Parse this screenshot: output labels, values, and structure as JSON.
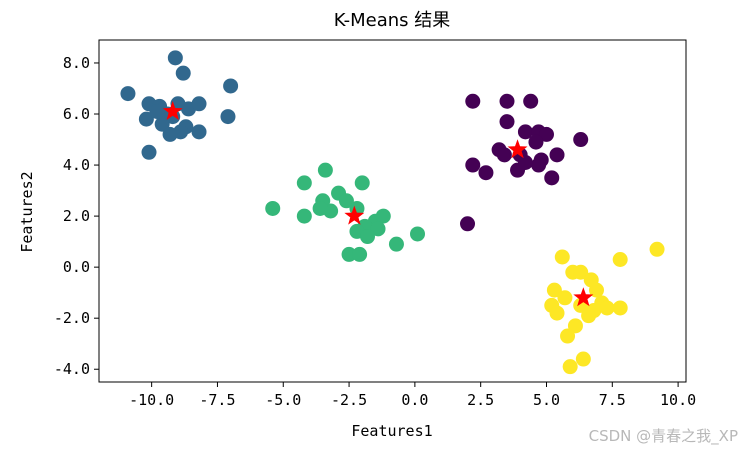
{
  "chart_data": {
    "type": "scatter",
    "title": "K-Means 结果",
    "xlabel": "Features1",
    "ylabel": "Features2",
    "xlim": [
      -12.0,
      10.3
    ],
    "ylim": [
      -4.5,
      8.9
    ],
    "xticks": [
      -10.0,
      -7.5,
      -5.0,
      -2.5,
      0.0,
      2.5,
      5.0,
      7.5,
      10.0
    ],
    "yticks": [
      -4.0,
      -2.0,
      0.0,
      2.0,
      4.0,
      6.0,
      8.0
    ],
    "grid": false,
    "point_radius_note": "filled circles",
    "series": [
      {
        "cluster": 0,
        "color": "#440154",
        "points": [
          [
            2.2,
            6.5
          ],
          [
            3.5,
            6.5
          ],
          [
            4.4,
            6.5
          ],
          [
            3.5,
            5.7
          ],
          [
            4.2,
            5.3
          ],
          [
            4.7,
            5.3
          ],
          [
            5.0,
            5.2
          ],
          [
            6.3,
            5.0
          ],
          [
            4.6,
            4.9
          ],
          [
            3.2,
            4.6
          ],
          [
            3.4,
            4.4
          ],
          [
            4.0,
            4.4
          ],
          [
            4.8,
            4.2
          ],
          [
            5.4,
            4.4
          ],
          [
            4.7,
            4.0
          ],
          [
            2.2,
            4.0
          ],
          [
            2.7,
            3.7
          ],
          [
            3.9,
            3.8
          ],
          [
            4.2,
            4.1
          ],
          [
            5.2,
            3.5
          ],
          [
            2.0,
            1.7
          ]
        ]
      },
      {
        "cluster": 1,
        "color": "#31688e",
        "points": [
          [
            -9.1,
            8.2
          ],
          [
            -8.8,
            7.6
          ],
          [
            -7.0,
            7.1
          ],
          [
            -10.9,
            6.8
          ],
          [
            -10.1,
            6.4
          ],
          [
            -9.7,
            6.3
          ],
          [
            -9.4,
            6.0
          ],
          [
            -9.0,
            6.4
          ],
          [
            -8.6,
            6.2
          ],
          [
            -8.2,
            6.4
          ],
          [
            -10.2,
            5.8
          ],
          [
            -9.6,
            5.6
          ],
          [
            -9.2,
            5.9
          ],
          [
            -8.7,
            5.5
          ],
          [
            -8.9,
            5.3
          ],
          [
            -9.3,
            5.2
          ],
          [
            -8.2,
            5.3
          ],
          [
            -7.1,
            5.9
          ],
          [
            -10.1,
            4.5
          ],
          [
            -9.8,
            6.1
          ]
        ]
      },
      {
        "cluster": 2,
        "color": "#35b779",
        "points": [
          [
            -3.4,
            3.8
          ],
          [
            -4.2,
            3.3
          ],
          [
            -2.9,
            2.9
          ],
          [
            -3.5,
            2.6
          ],
          [
            -2.6,
            2.6
          ],
          [
            -2.0,
            3.3
          ],
          [
            -3.2,
            2.2
          ],
          [
            -2.2,
            2.3
          ],
          [
            -1.5,
            1.8
          ],
          [
            -5.4,
            2.3
          ],
          [
            -4.2,
            2.0
          ],
          [
            -3.6,
            2.3
          ],
          [
            -1.9,
            1.6
          ],
          [
            -1.2,
            2.0
          ],
          [
            -1.4,
            1.5
          ],
          [
            -2.2,
            1.4
          ],
          [
            -1.8,
            1.2
          ],
          [
            -0.7,
            0.9
          ],
          [
            0.1,
            1.3
          ],
          [
            -2.5,
            0.5
          ],
          [
            -2.1,
            0.5
          ]
        ]
      },
      {
        "cluster": 3,
        "color": "#fde725",
        "points": [
          [
            5.6,
            0.4
          ],
          [
            6.0,
            -0.2
          ],
          [
            6.3,
            -0.2
          ],
          [
            6.7,
            -0.5
          ],
          [
            7.8,
            0.3
          ],
          [
            9.2,
            0.7
          ],
          [
            5.3,
            -0.9
          ],
          [
            5.7,
            -1.2
          ],
          [
            6.9,
            -0.9
          ],
          [
            7.1,
            -1.4
          ],
          [
            5.2,
            -1.5
          ],
          [
            5.4,
            -1.8
          ],
          [
            6.3,
            -1.5
          ],
          [
            6.8,
            -1.7
          ],
          [
            7.3,
            -1.6
          ],
          [
            7.8,
            -1.6
          ],
          [
            6.6,
            -1.9
          ],
          [
            6.1,
            -2.3
          ],
          [
            5.8,
            -2.7
          ],
          [
            6.4,
            -3.6
          ],
          [
            5.9,
            -3.9
          ]
        ]
      }
    ],
    "centroids": {
      "color": "#ff0000",
      "marker": "star",
      "points": [
        [
          3.9,
          4.6
        ],
        [
          -9.2,
          6.1
        ],
        [
          -2.3,
          2.0
        ],
        [
          6.4,
          -1.2
        ]
      ]
    }
  },
  "watermark": "CSDN @青春之我_XP"
}
